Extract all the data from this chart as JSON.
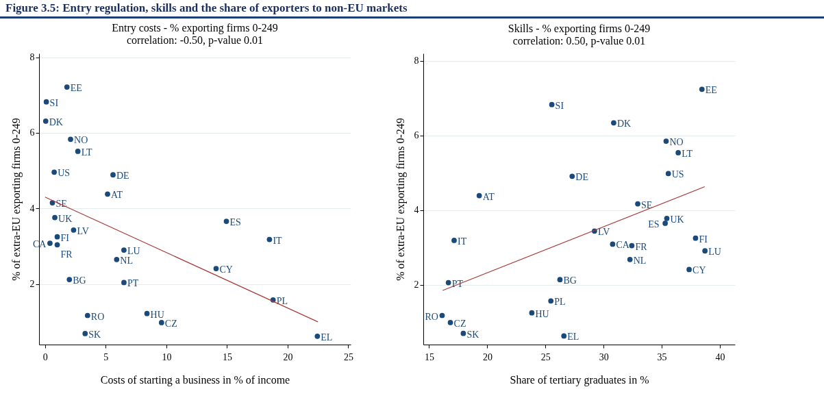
{
  "chart_data": [
    {
      "type": "scatter",
      "title": "Entry costs - % exporting firms 0-249",
      "subtitle": "correlation: -0.50, p-value 0.01",
      "annotations": [
        "Figure 3.5: Entry regulation, skills and the share of exporters to non-EU markets"
      ],
      "xlabel": "Costs of starting a business in % of income",
      "ylabel": "% of extra-EU exporting firms 0-249",
      "xlim": [
        -0.5,
        25.2
      ],
      "ylim": [
        0.4,
        8.1
      ],
      "xticks": [
        0,
        5,
        10,
        15,
        20,
        25
      ],
      "yticks": [
        2,
        4,
        6,
        8
      ],
      "grid": "y",
      "series": [
        {
          "marker": "circle",
          "color": "#1b4a7a",
          "x": [
            1.8,
            0.1,
            0.05,
            2.1,
            2.7,
            0.75,
            5.6,
            5.15,
            0.6,
            0.8,
            2.35,
            1.0,
            0.4,
            1.0,
            14.95,
            18.5,
            6.5,
            5.9,
            14.1,
            2.0,
            6.5,
            18.8,
            8.4,
            3.5,
            9.6,
            3.3,
            22.45
          ],
          "values": [
            7.21,
            6.82,
            6.31,
            5.83,
            5.51,
            4.96,
            4.89,
            4.38,
            4.15,
            3.76,
            3.43,
            3.25,
            3.08,
            3.04,
            3.66,
            3.18,
            2.9,
            2.65,
            2.41,
            2.12,
            2.04,
            1.58,
            1.22,
            1.17,
            0.98,
            0.69,
            0.62
          ],
          "value_labels": [
            "EE",
            "SI",
            "DK",
            "NO",
            "LT",
            "US",
            "DE",
            "AT",
            "SE",
            "UK",
            "LV",
            "FI",
            "CA",
            "FR",
            "ES",
            "IT",
            "LU",
            "NL",
            "CY",
            "BG",
            "PT",
            "PL",
            "HU",
            "RO",
            "CZ",
            "SK",
            "EL"
          ]
        },
        {
          "type": "line",
          "color": "#a83a3a",
          "x": [
            0,
            22.5
          ],
          "values": [
            4.3,
            1.0
          ]
        }
      ]
    },
    {
      "type": "scatter",
      "title": "Skills - % exporting firms 0-249",
      "subtitle": "correlation: 0.50, p-value 0.01",
      "xlabel": "Share of tertiary graduates in %",
      "ylabel": "% of extra-EU exporting firms 0-249",
      "xlim": [
        14.5,
        41.3
      ],
      "ylim": [
        0.4,
        8.2
      ],
      "xticks": [
        15,
        20,
        25,
        30,
        35,
        40
      ],
      "yticks": [
        2,
        4,
        6,
        8
      ],
      "grid": "y",
      "series": [
        {
          "marker": "circle",
          "color": "#1b4a7a",
          "x": [
            38.46,
            25.55,
            30.87,
            35.38,
            36.42,
            35.57,
            27.3,
            19.31,
            32.94,
            35.44,
            35.3,
            29.22,
            17.15,
            30.78,
            32.43,
            37.91,
            38.72,
            32.27,
            37.36,
            26.25,
            16.66,
            25.47,
            23.83,
            16.12,
            16.83,
            17.94,
            26.59
          ],
          "values": [
            7.24,
            6.83,
            6.34,
            5.85,
            5.54,
            4.98,
            4.91,
            4.39,
            4.17,
            3.78,
            3.65,
            3.44,
            3.19,
            3.09,
            3.05,
            3.25,
            2.91,
            2.68,
            2.41,
            2.14,
            2.06,
            1.57,
            1.25,
            1.18,
            0.99,
            0.7,
            0.63
          ],
          "value_labels": [
            "EE",
            "SI",
            "DK",
            "NO",
            "LT",
            "US",
            "DE",
            "AT",
            "SE",
            "UK",
            "ES",
            "LV",
            "IT",
            "CA",
            "FR",
            "FI",
            "LU",
            "NL",
            "CY",
            "BG",
            "PT",
            "PL",
            "HU",
            "RO",
            "CZ",
            "SK",
            "EL"
          ]
        },
        {
          "type": "line",
          "color": "#a83a3a",
          "x": [
            16.16,
            38.7
          ],
          "values": [
            1.85,
            4.63
          ]
        }
      ]
    }
  ]
}
